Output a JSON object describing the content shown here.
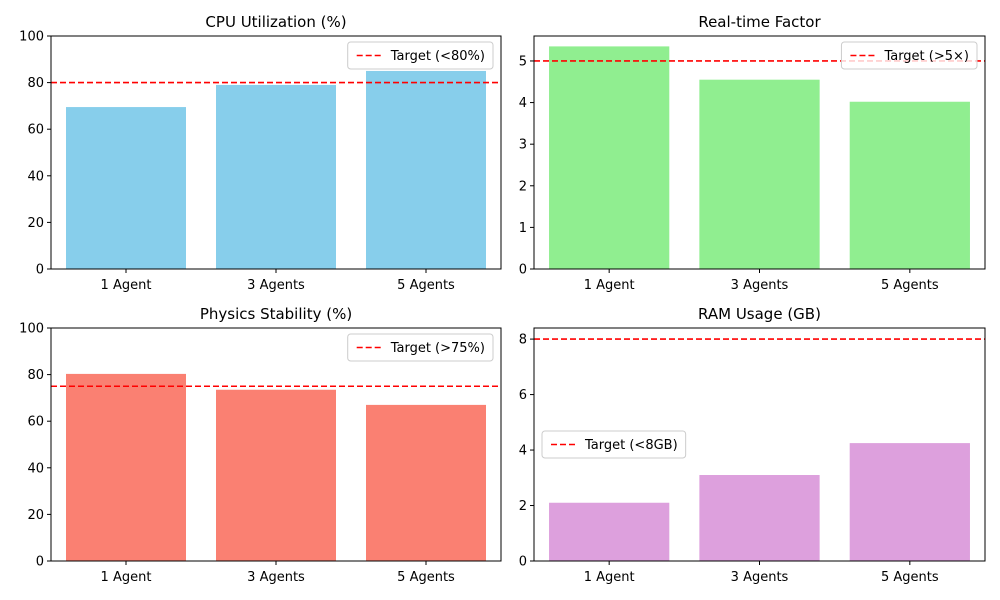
{
  "chart_data": [
    {
      "type": "bar",
      "title": "CPU Utilization (%)",
      "categories": [
        "1 Agent",
        "3 Agents",
        "5 Agents"
      ],
      "values": [
        69.5,
        79,
        85
      ],
      "ylim": [
        0,
        100
      ],
      "yticks": [
        0,
        20,
        40,
        60,
        80,
        100
      ],
      "bar_color": "#87ceeb",
      "target": {
        "value": 80,
        "label": "Target (<80%)",
        "color": "#ff0000"
      },
      "legend_position": "upper-right"
    },
    {
      "type": "bar",
      "title": "Real-time Factor",
      "categories": [
        "1 Agent",
        "3 Agents",
        "5 Agents"
      ],
      "values": [
        5.35,
        4.55,
        4.02
      ],
      "ylim": [
        0,
        5.6
      ],
      "yticks": [
        0,
        1,
        2,
        3,
        4,
        5
      ],
      "bar_color": "#90ee90",
      "target": {
        "value": 5,
        "label": "Target (>5×)",
        "color": "#ff0000"
      },
      "legend_position": "upper-right"
    },
    {
      "type": "bar",
      "title": "Physics Stability (%)",
      "categories": [
        "1 Agent",
        "3 Agents",
        "5 Agents"
      ],
      "values": [
        80.3,
        73.5,
        67
      ],
      "ylim": [
        0,
        100
      ],
      "yticks": [
        0,
        20,
        40,
        60,
        80,
        100
      ],
      "bar_color": "#fa8072",
      "target": {
        "value": 75,
        "label": "Target (>75%)",
        "color": "#ff0000"
      },
      "legend_position": "upper-right"
    },
    {
      "type": "bar",
      "title": "RAM Usage (GB)",
      "categories": [
        "1 Agent",
        "3 Agents",
        "5 Agents"
      ],
      "values": [
        2.1,
        3.1,
        4.25
      ],
      "ylim": [
        0,
        8.4
      ],
      "yticks": [
        0,
        2,
        4,
        6,
        8
      ],
      "bar_color": "#dda0dd",
      "target": {
        "value": 8,
        "label": "Target (<8GB)",
        "color": "#ff0000"
      },
      "legend_position": "center-left"
    }
  ]
}
